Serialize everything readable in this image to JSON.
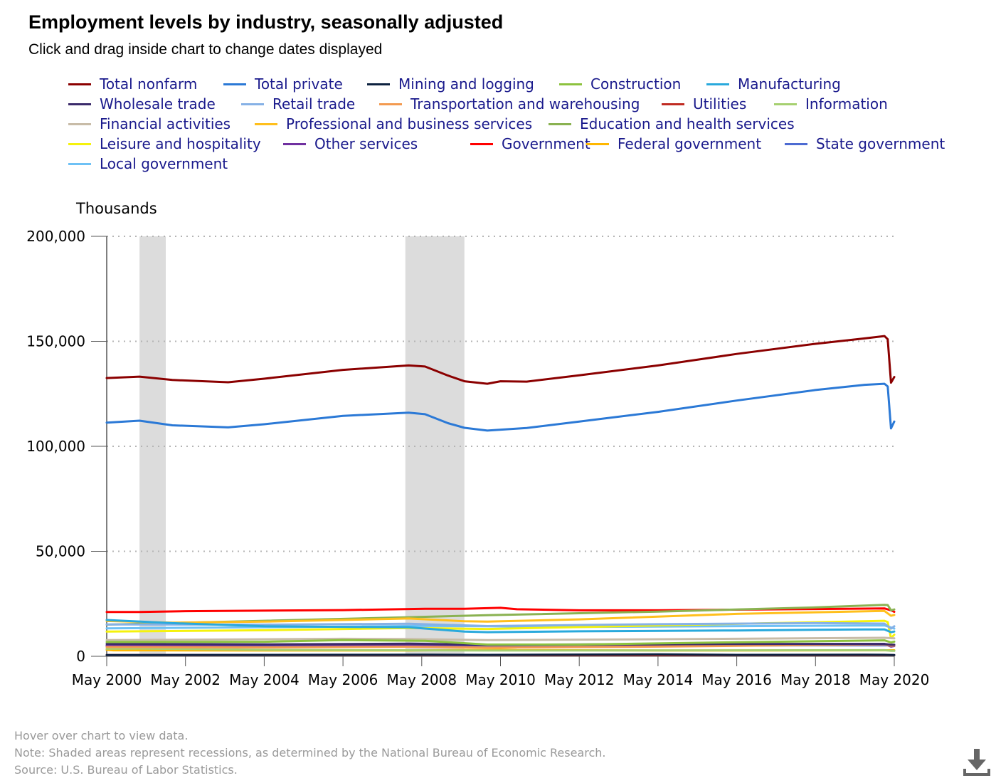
{
  "header": {
    "title": "Employment levels by industry, seasonally adjusted",
    "subtitle": "Click and drag inside chart to change dates displayed"
  },
  "footer": {
    "hover_note": "Hover over chart to view data.",
    "recession_note": "Note: Shaded areas represent recessions, as determined by the National Bureau of Economic Research.",
    "source": "Source: U.S. Bureau of Labor Statistics."
  },
  "download_icon": "download-icon",
  "chart_data": {
    "type": "line",
    "ylabel": "Thousands",
    "ylim": [
      0,
      200000
    ],
    "yticks": [
      0,
      50000,
      100000,
      150000,
      200000
    ],
    "ytick_labels": [
      "0",
      "50,000",
      "100,000",
      "150,000",
      "200,000"
    ],
    "x_range": [
      "2000-05",
      "2020-05"
    ],
    "xticks": [
      "2000-05",
      "2002-05",
      "2004-05",
      "2006-05",
      "2008-05",
      "2010-05",
      "2012-05",
      "2014-05",
      "2016-05",
      "2018-05",
      "2020-05"
    ],
    "xtick_labels": [
      "May 2000",
      "May 2002",
      "May 2004",
      "May 2006",
      "May 2008",
      "May 2010",
      "May 2012",
      "May 2014",
      "May 2016",
      "May 2018",
      "May 2020"
    ],
    "grid": "horizontal dotted",
    "legend_position": "top",
    "recessions": [
      {
        "start": "2001-03",
        "end": "2001-11"
      },
      {
        "start": "2007-12",
        "end": "2009-06"
      }
    ],
    "series": [
      {
        "name": "Total nonfarm",
        "color": "#8b0000",
        "points": [
          [
            "2000-05",
            132500
          ],
          [
            "2001-03",
            133200
          ],
          [
            "2002-01",
            131600
          ],
          [
            "2003-06",
            130500
          ],
          [
            "2004-05",
            132200
          ],
          [
            "2006-05",
            136400
          ],
          [
            "2008-01",
            138500
          ],
          [
            "2008-06",
            138000
          ],
          [
            "2009-01",
            133700
          ],
          [
            "2009-06",
            131000
          ],
          [
            "2010-01",
            129800
          ],
          [
            "2010-05",
            131000
          ],
          [
            "2011-01",
            130800
          ],
          [
            "2012-05",
            133800
          ],
          [
            "2014-05",
            138500
          ],
          [
            "2016-05",
            144000
          ],
          [
            "2018-05",
            148800
          ],
          [
            "2019-08",
            151400
          ],
          [
            "2020-02",
            152500
          ],
          [
            "2020-03",
            151000
          ],
          [
            "2020-04",
            130300
          ],
          [
            "2020-05",
            133000
          ]
        ]
      },
      {
        "name": "Total private",
        "color": "#2b79d6",
        "points": [
          [
            "2000-05",
            111300
          ],
          [
            "2001-03",
            112200
          ],
          [
            "2002-01",
            110000
          ],
          [
            "2003-06",
            109000
          ],
          [
            "2004-05",
            110500
          ],
          [
            "2006-05",
            114500
          ],
          [
            "2008-01",
            116000
          ],
          [
            "2008-06",
            115300
          ],
          [
            "2009-01",
            111000
          ],
          [
            "2009-06",
            108800
          ],
          [
            "2010-01",
            107500
          ],
          [
            "2011-01",
            108700
          ],
          [
            "2012-05",
            111800
          ],
          [
            "2014-05",
            116400
          ],
          [
            "2016-05",
            121800
          ],
          [
            "2018-05",
            126800
          ],
          [
            "2019-08",
            129300
          ],
          [
            "2020-02",
            129800
          ],
          [
            "2020-03",
            128500
          ],
          [
            "2020-04",
            108500
          ],
          [
            "2020-05",
            111800
          ]
        ]
      },
      {
        "name": "Mining and logging",
        "color": "#0d2240",
        "points": [
          [
            "2000-05",
            600
          ],
          [
            "2006-05",
            700
          ],
          [
            "2008-06",
            780
          ],
          [
            "2010-01",
            680
          ],
          [
            "2014-05",
            900
          ],
          [
            "2016-05",
            680
          ],
          [
            "2019-08",
            730
          ],
          [
            "2020-02",
            700
          ],
          [
            "2020-04",
            640
          ],
          [
            "2020-05",
            620
          ]
        ]
      },
      {
        "name": "Construction",
        "color": "#8dc23e",
        "points": [
          [
            "2000-05",
            6800
          ],
          [
            "2004-05",
            6900
          ],
          [
            "2006-05",
            7700
          ],
          [
            "2008-06",
            7400
          ],
          [
            "2010-01",
            5600
          ],
          [
            "2012-05",
            5600
          ],
          [
            "2016-05",
            6700
          ],
          [
            "2020-02",
            7600
          ],
          [
            "2020-04",
            6600
          ],
          [
            "2020-05",
            7000
          ]
        ]
      },
      {
        "name": "Manufacturing",
        "color": "#29a9dc",
        "points": [
          [
            "2000-05",
            17300
          ],
          [
            "2002-01",
            15800
          ],
          [
            "2004-05",
            14300
          ],
          [
            "2008-01",
            13800
          ],
          [
            "2009-06",
            11800
          ],
          [
            "2010-01",
            11500
          ],
          [
            "2012-05",
            11900
          ],
          [
            "2016-05",
            12300
          ],
          [
            "2019-08",
            12800
          ],
          [
            "2020-02",
            12800
          ],
          [
            "2020-04",
            11500
          ],
          [
            "2020-05",
            11800
          ]
        ]
      },
      {
        "name": "Wholesale trade",
        "color": "#3b2a6b",
        "points": [
          [
            "2000-05",
            5900
          ],
          [
            "2004-05",
            5650
          ],
          [
            "2008-01",
            6000
          ],
          [
            "2010-01",
            5500
          ],
          [
            "2016-05",
            5850
          ],
          [
            "2020-02",
            5900
          ],
          [
            "2020-04",
            5500
          ],
          [
            "2020-05",
            5500
          ]
        ]
      },
      {
        "name": "Retail trade",
        "color": "#86b1e6",
        "points": [
          [
            "2000-05",
            15200
          ],
          [
            "2004-05",
            15100
          ],
          [
            "2008-01",
            15500
          ],
          [
            "2010-01",
            14400
          ],
          [
            "2014-05",
            15300
          ],
          [
            "2018-05",
            15800
          ],
          [
            "2020-02",
            15600
          ],
          [
            "2020-04",
            13200
          ],
          [
            "2020-05",
            14300
          ]
        ]
      },
      {
        "name": "Transportation and warehousing",
        "color": "#f39a50",
        "points": [
          [
            "2000-05",
            4400
          ],
          [
            "2004-05",
            4250
          ],
          [
            "2008-01",
            4550
          ],
          [
            "2010-01",
            4150
          ],
          [
            "2014-05",
            4600
          ],
          [
            "2018-05",
            5400
          ],
          [
            "2020-02",
            5700
          ],
          [
            "2020-04",
            5100
          ],
          [
            "2020-05",
            5200
          ]
        ]
      },
      {
        "name": "Utilities",
        "color": "#c02b22",
        "points": [
          [
            "2000-05",
            600
          ],
          [
            "2010-01",
            560
          ],
          [
            "2020-05",
            550
          ]
        ]
      },
      {
        "name": "Information",
        "color": "#a6d070",
        "points": [
          [
            "2000-05",
            3600
          ],
          [
            "2001-03",
            3700
          ],
          [
            "2004-05",
            3100
          ],
          [
            "2010-01",
            2750
          ],
          [
            "2020-02",
            2900
          ],
          [
            "2020-04",
            2650
          ],
          [
            "2020-05",
            2600
          ]
        ]
      },
      {
        "name": "Financial activities",
        "color": "#c8bca8",
        "points": [
          [
            "2000-05",
            7700
          ],
          [
            "2006-05",
            8350
          ],
          [
            "2008-01",
            8200
          ],
          [
            "2010-01",
            7700
          ],
          [
            "2016-05",
            8350
          ],
          [
            "2020-02",
            8800
          ],
          [
            "2020-05",
            8550
          ]
        ]
      },
      {
        "name": "Professional and business services",
        "color": "#ffbf1c",
        "points": [
          [
            "2000-05",
            16800
          ],
          [
            "2002-01",
            16000
          ],
          [
            "2004-05",
            16500
          ],
          [
            "2008-01",
            18000
          ],
          [
            "2009-06",
            16700
          ],
          [
            "2010-01",
            16500
          ],
          [
            "2012-05",
            17600
          ],
          [
            "2016-05",
            20200
          ],
          [
            "2020-02",
            21600
          ],
          [
            "2020-04",
            19300
          ],
          [
            "2020-05",
            19700
          ]
        ]
      },
      {
        "name": "Education and health services",
        "color": "#8ab251",
        "points": [
          [
            "2000-05",
            15100
          ],
          [
            "2004-05",
            16900
          ],
          [
            "2008-01",
            18600
          ],
          [
            "2010-01",
            19600
          ],
          [
            "2014-05",
            21300
          ],
          [
            "2018-05",
            23300
          ],
          [
            "2020-02",
            24500
          ],
          [
            "2020-03",
            24400
          ],
          [
            "2020-04",
            21900
          ],
          [
            "2020-05",
            22300
          ]
        ]
      },
      {
        "name": "Leisure and hospitality",
        "color": "#f5f20c",
        "points": [
          [
            "2000-05",
            11800
          ],
          [
            "2004-05",
            12400
          ],
          [
            "2008-01",
            13500
          ],
          [
            "2010-01",
            13000
          ],
          [
            "2014-05",
            14700
          ],
          [
            "2018-05",
            16200
          ],
          [
            "2020-02",
            16900
          ],
          [
            "2020-03",
            16300
          ],
          [
            "2020-04",
            8600
          ],
          [
            "2020-05",
            10300
          ]
        ]
      },
      {
        "name": "Other services",
        "color": "#7030a0",
        "points": [
          [
            "2000-05",
            5150
          ],
          [
            "2004-05",
            5400
          ],
          [
            "2008-01",
            5500
          ],
          [
            "2010-01",
            5350
          ],
          [
            "2018-05",
            5800
          ],
          [
            "2020-02",
            5900
          ],
          [
            "2020-04",
            4600
          ],
          [
            "2020-05",
            4900
          ]
        ]
      },
      {
        "name": "Government",
        "color": "#ff0000",
        "points": [
          [
            "2000-05",
            21100
          ],
          [
            "2001-03",
            21100
          ],
          [
            "2002-05",
            21500
          ],
          [
            "2006-05",
            22000
          ],
          [
            "2008-06",
            22600
          ],
          [
            "2009-06",
            22600
          ],
          [
            "2010-05",
            23100
          ],
          [
            "2010-10",
            22400
          ],
          [
            "2012-05",
            21900
          ],
          [
            "2014-05",
            21900
          ],
          [
            "2018-05",
            22500
          ],
          [
            "2020-02",
            22800
          ],
          [
            "2020-04",
            21900
          ],
          [
            "2020-05",
            21200
          ]
        ]
      },
      {
        "name": "Federal government",
        "color": "#ffb700",
        "points": [
          [
            "2000-05",
            3100
          ],
          [
            "2000-07",
            2850
          ],
          [
            "2004-05",
            2730
          ],
          [
            "2008-01",
            2760
          ],
          [
            "2010-05",
            3200
          ],
          [
            "2010-10",
            2980
          ],
          [
            "2014-05",
            2750
          ],
          [
            "2020-02",
            2860
          ],
          [
            "2020-05",
            2870
          ]
        ]
      },
      {
        "name": "State government",
        "color": "#4d6bd2",
        "points": [
          [
            "2000-05",
            4800
          ],
          [
            "2008-06",
            5150
          ],
          [
            "2012-05",
            5050
          ],
          [
            "2020-02",
            5250
          ],
          [
            "2020-05",
            5150
          ]
        ]
      },
      {
        "name": "Local government",
        "color": "#6ec1f5",
        "points": [
          [
            "2000-05",
            13300
          ],
          [
            "2006-05",
            14100
          ],
          [
            "2008-06",
            14500
          ],
          [
            "2012-05",
            14000
          ],
          [
            "2020-02",
            14700
          ],
          [
            "2020-04",
            13700
          ],
          [
            "2020-05",
            13200
          ]
        ]
      }
    ]
  }
}
